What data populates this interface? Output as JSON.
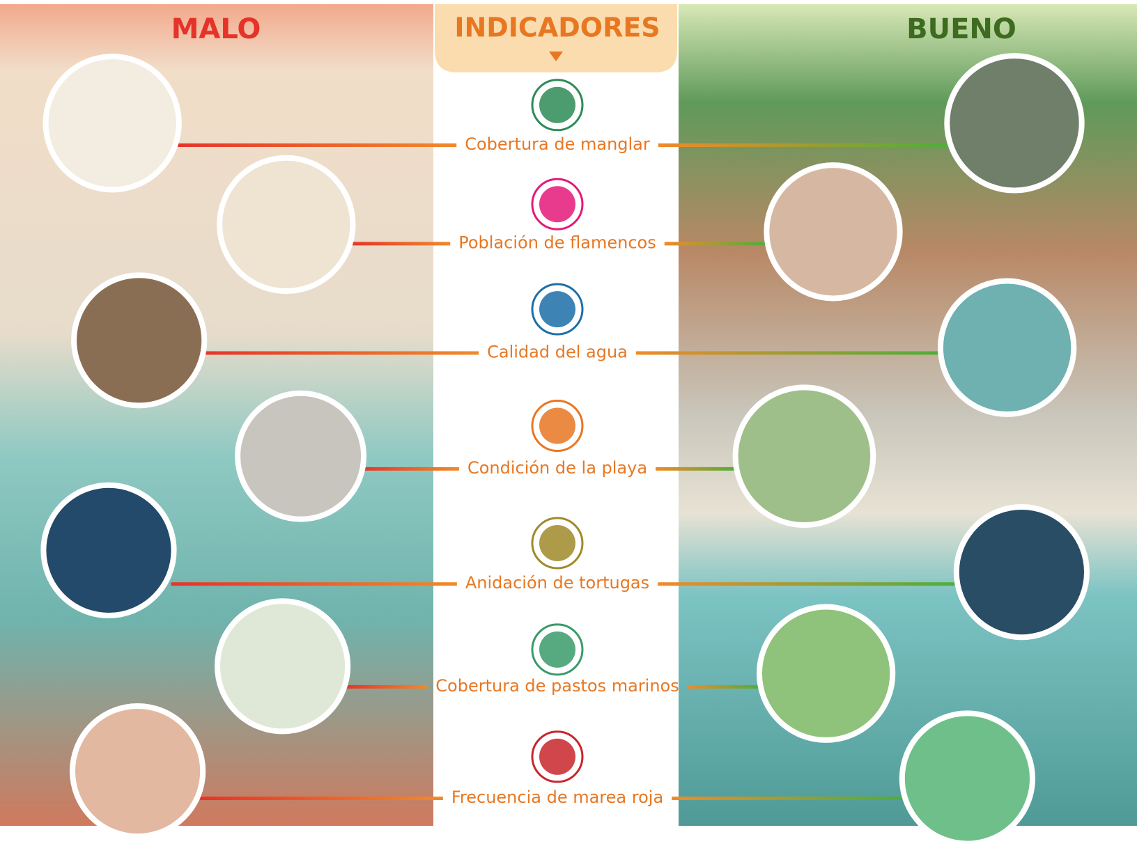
{
  "header": {
    "left": "MALO",
    "center": "INDICADORES",
    "right": "BUENO"
  },
  "indicators": [
    "Cobertura de manglar",
    "Población de flamencos",
    "Calidad del agua",
    "Condición de la playa",
    "Anidación de tortugas",
    "Cobertura de pastos marinos",
    "Frecuencia de marea roja"
  ]
}
